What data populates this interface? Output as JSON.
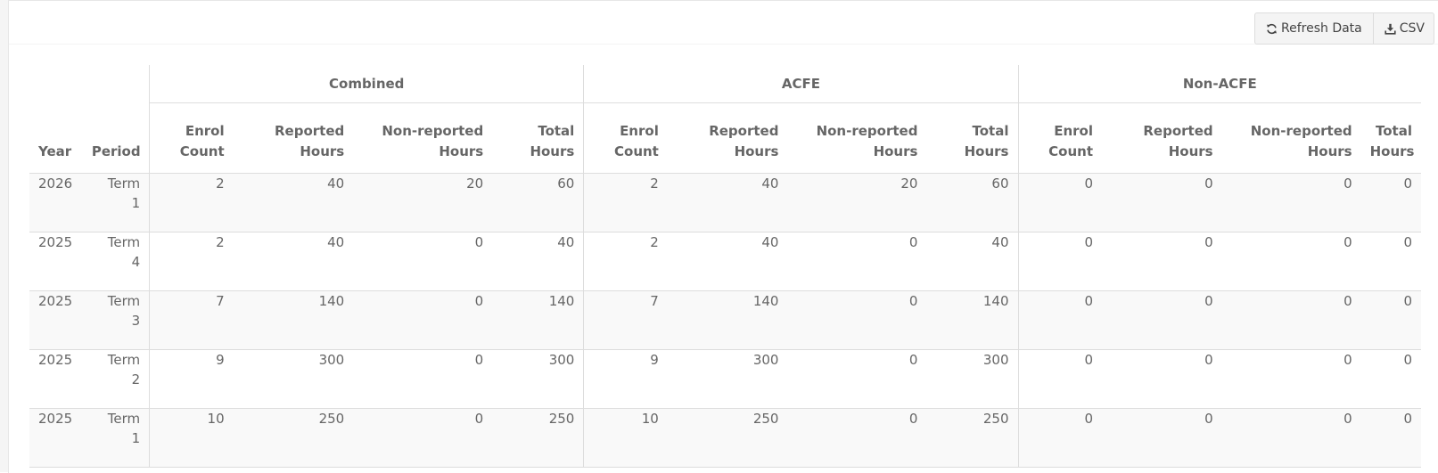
{
  "toolbar": {
    "refresh_label": "Refresh Data",
    "refresh_icon": "refresh-icon",
    "csv_label": "CSV",
    "csv_icon": "download-icon"
  },
  "table": {
    "groups": [
      "Combined",
      "ACFE",
      "Non-ACFE"
    ],
    "columns": {
      "year": "Year",
      "period": "Period",
      "enrol_count": [
        "Enrol",
        "Count"
      ],
      "reported_hours": [
        "Reported",
        "Hours"
      ],
      "nonreported_hours": [
        "Non-reported",
        "Hours"
      ],
      "total_hours": [
        "Total",
        "Hours"
      ]
    },
    "rows": [
      {
        "year": "2026",
        "period": [
          "Term",
          "1"
        ],
        "cells": [
          "2",
          "40",
          "20",
          "60",
          "2",
          "40",
          "20",
          "60",
          "0",
          "0",
          "0",
          "0"
        ]
      },
      {
        "year": "2025",
        "period": [
          "Term",
          "4"
        ],
        "cells": [
          "2",
          "40",
          "0",
          "40",
          "2",
          "40",
          "0",
          "40",
          "0",
          "0",
          "0",
          "0"
        ]
      },
      {
        "year": "2025",
        "period": [
          "Term",
          "3"
        ],
        "cells": [
          "7",
          "140",
          "0",
          "140",
          "7",
          "140",
          "0",
          "140",
          "0",
          "0",
          "0",
          "0"
        ]
      },
      {
        "year": "2025",
        "period": [
          "Term",
          "2"
        ],
        "cells": [
          "9",
          "300",
          "0",
          "300",
          "9",
          "300",
          "0",
          "300",
          "0",
          "0",
          "0",
          "0"
        ]
      },
      {
        "year": "2025",
        "period": [
          "Term",
          "1"
        ],
        "cells": [
          "10",
          "250",
          "0",
          "250",
          "10",
          "250",
          "0",
          "250",
          "0",
          "0",
          "0",
          "0"
        ]
      }
    ]
  }
}
